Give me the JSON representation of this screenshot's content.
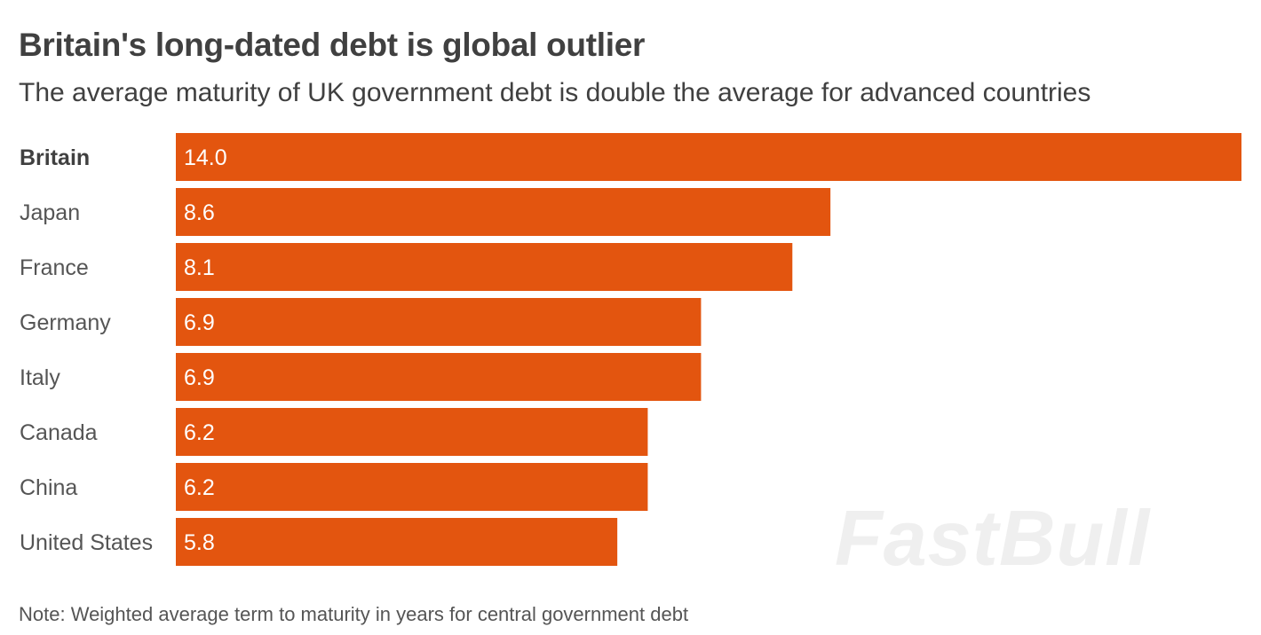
{
  "header": {
    "title": "Britain's long-dated debt is global outlier",
    "subtitle": "The average maturity of UK government debt is double the average for advanced countries"
  },
  "chart_data": {
    "type": "bar",
    "orientation": "horizontal",
    "title": "Britain's long-dated debt is global outlier",
    "subtitle": "The average maturity of UK government debt is double the average for advanced countries",
    "categories": [
      "Britain",
      "Japan",
      "France",
      "Germany",
      "Italy",
      "Canada",
      "China",
      "United States"
    ],
    "values": [
      14.0,
      8.6,
      8.1,
      6.9,
      6.9,
      6.2,
      6.2,
      5.8
    ],
    "value_labels": [
      "14.0",
      "8.6",
      "8.1",
      "6.9",
      "6.9",
      "6.2",
      "6.2",
      "5.8"
    ],
    "highlight": "Britain",
    "xlim": [
      0,
      14.0
    ],
    "xlabel": "",
    "ylabel": "",
    "grid": false,
    "bar_color": "#e3550f"
  },
  "footer": {
    "note": "Note: Weighted average term to maturity in years for central government debt"
  },
  "watermark": "FastBull"
}
